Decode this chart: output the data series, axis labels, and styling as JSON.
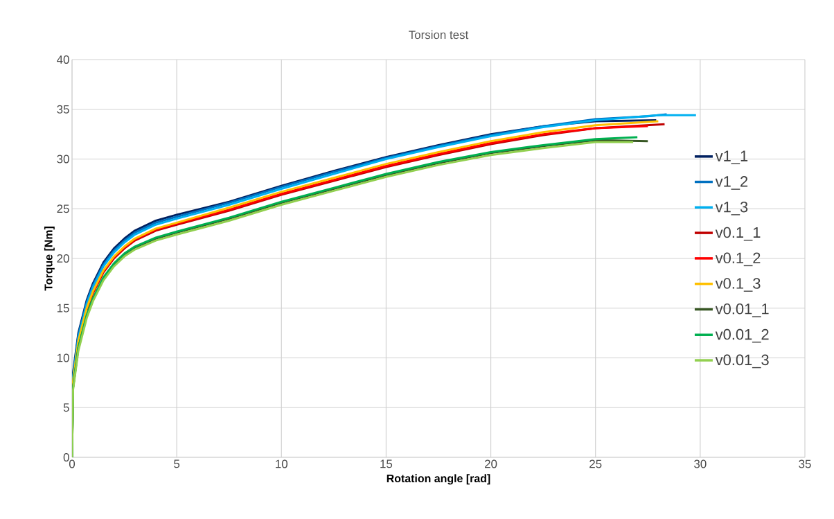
{
  "chart_data": {
    "type": "line",
    "title": "Torsion test",
    "xlabel": "Rotation angle [rad]",
    "ylabel": "Torque [Nm]",
    "xlim": [
      0,
      35
    ],
    "xticks": [
      0,
      5,
      10,
      15,
      20,
      25,
      30,
      35
    ],
    "ylim": [
      0,
      40
    ],
    "yticks": [
      0,
      5,
      10,
      15,
      20,
      25,
      30,
      35,
      40
    ],
    "grid": true,
    "legend": "right",
    "marker": "none",
    "line_style": "solid",
    "series": [
      {
        "name": "v1_1",
        "color": "#002060",
        "x": [
          0,
          0.05,
          0.3,
          0.7,
          1,
          1.5,
          2,
          2.5,
          3,
          4,
          5,
          7.5,
          10,
          12.5,
          15,
          17.5,
          20,
          22.5,
          25,
          27.9
        ],
        "values": [
          0,
          8.5,
          12.5,
          15.8,
          17.5,
          19.6,
          21,
          22,
          22.8,
          23.8,
          24.4,
          25.7,
          27.3,
          28.8,
          30.2,
          31.4,
          32.5,
          33.3,
          33.8,
          33.9
        ]
      },
      {
        "name": "v1_2",
        "color": "#0070c0",
        "x": [
          0,
          0.05,
          0.3,
          0.7,
          1,
          1.5,
          2,
          2.5,
          3,
          4,
          5,
          7.5,
          10,
          12.5,
          15,
          17.5,
          20,
          22.5,
          25,
          27.5,
          28.4
        ],
        "values": [
          0,
          8.2,
          12.3,
          15.6,
          17.3,
          19.4,
          20.8,
          21.8,
          22.6,
          23.6,
          24.2,
          25.6,
          27.2,
          28.7,
          30.1,
          31.3,
          32.4,
          33.3,
          34.0,
          34.3,
          34.5
        ]
      },
      {
        "name": "v1_3",
        "color": "#00b0f0",
        "x": [
          0,
          0.05,
          0.3,
          0.7,
          1,
          1.5,
          2,
          2.5,
          3,
          4,
          5,
          7.5,
          10,
          12.5,
          15,
          17.5,
          20,
          22.5,
          25,
          28,
          29.8
        ],
        "values": [
          0,
          8,
          12,
          15.4,
          17.1,
          19.2,
          20.6,
          21.6,
          22.4,
          23.4,
          24.0,
          25.4,
          27.0,
          28.5,
          30.0,
          31.2,
          32.3,
          33.2,
          33.9,
          34.4,
          34.4
        ]
      },
      {
        "name": "v0.1_1",
        "color": "#c00000",
        "x": [
          0.7,
          1,
          1.5,
          2,
          2.5,
          3,
          4,
          5,
          7.5,
          10,
          12.5,
          15,
          17.5,
          20,
          22.5,
          25,
          28.3
        ],
        "values": [
          14.8,
          16.5,
          18.6,
          20,
          21,
          21.8,
          22.8,
          23.4,
          24.8,
          26.4,
          27.8,
          29.2,
          30.4,
          31.5,
          32.4,
          33.1,
          33.5
        ]
      },
      {
        "name": "v0.1_2",
        "color": "#ff0000",
        "x": [
          0.7,
          1,
          1.5,
          2,
          2.5,
          3,
          4,
          5,
          7.5,
          10,
          12.5,
          15,
          17.5,
          20,
          22.5,
          25,
          27.5
        ],
        "values": [
          14.9,
          16.6,
          18.7,
          20.1,
          21.1,
          21.9,
          22.9,
          23.5,
          24.9,
          26.5,
          27.9,
          29.3,
          30.5,
          31.6,
          32.5,
          33.1,
          33.3
        ]
      },
      {
        "name": "v0.1_3",
        "color": "#ffc000",
        "x": [
          0,
          0.05,
          0.3,
          0.7,
          1,
          1.5,
          2,
          2.5,
          3,
          4,
          5,
          7.5,
          10,
          12.5,
          15,
          17.5,
          20,
          22.5,
          25,
          28
        ],
        "values": [
          0,
          7.7,
          11.7,
          15.0,
          16.7,
          18.8,
          20.2,
          21.2,
          22.0,
          23.0,
          23.6,
          25.1,
          26.7,
          28.1,
          29.5,
          30.7,
          31.8,
          32.7,
          33.4,
          33.8
        ]
      },
      {
        "name": "v0.01_1",
        "color": "#375623",
        "x": [
          0,
          0.05,
          0.3,
          0.7,
          1,
          1.5,
          2,
          2.5,
          3,
          4,
          5,
          7.5,
          10,
          12.5,
          15,
          17.5,
          20,
          22.5,
          25,
          27.5
        ],
        "values": [
          0,
          7,
          11,
          14.2,
          15.9,
          18,
          19.4,
          20.4,
          21.1,
          22.0,
          22.6,
          24.0,
          25.6,
          27.0,
          28.4,
          29.6,
          30.6,
          31.3,
          31.9,
          31.8
        ]
      },
      {
        "name": "v0.01_2",
        "color": "#00b050",
        "x": [
          0,
          0.05,
          0.3,
          0.7,
          1,
          1.5,
          2,
          2.5,
          3,
          4,
          5,
          7.5,
          10,
          12.5,
          15,
          17.5,
          20,
          22.5,
          25,
          27
        ],
        "values": [
          0,
          7,
          11,
          14.3,
          16,
          18.1,
          19.5,
          20.5,
          21.2,
          22.1,
          22.7,
          24.1,
          25.7,
          27.1,
          28.5,
          29.7,
          30.7,
          31.4,
          32.0,
          32.2
        ]
      },
      {
        "name": "v0.01_3",
        "color": "#92d050",
        "x": [
          0,
          0.05,
          0.3,
          0.7,
          1,
          1.5,
          2,
          2.5,
          3,
          4,
          5,
          7.5,
          10,
          12.5,
          15,
          17.5,
          20,
          22.5,
          25,
          26.8
        ],
        "values": [
          0,
          6.8,
          10.7,
          14,
          15.7,
          17.8,
          19.2,
          20.2,
          20.9,
          21.8,
          22.4,
          23.8,
          25.4,
          26.8,
          28.2,
          29.4,
          30.4,
          31.1,
          31.7,
          31.7
        ]
      }
    ]
  }
}
